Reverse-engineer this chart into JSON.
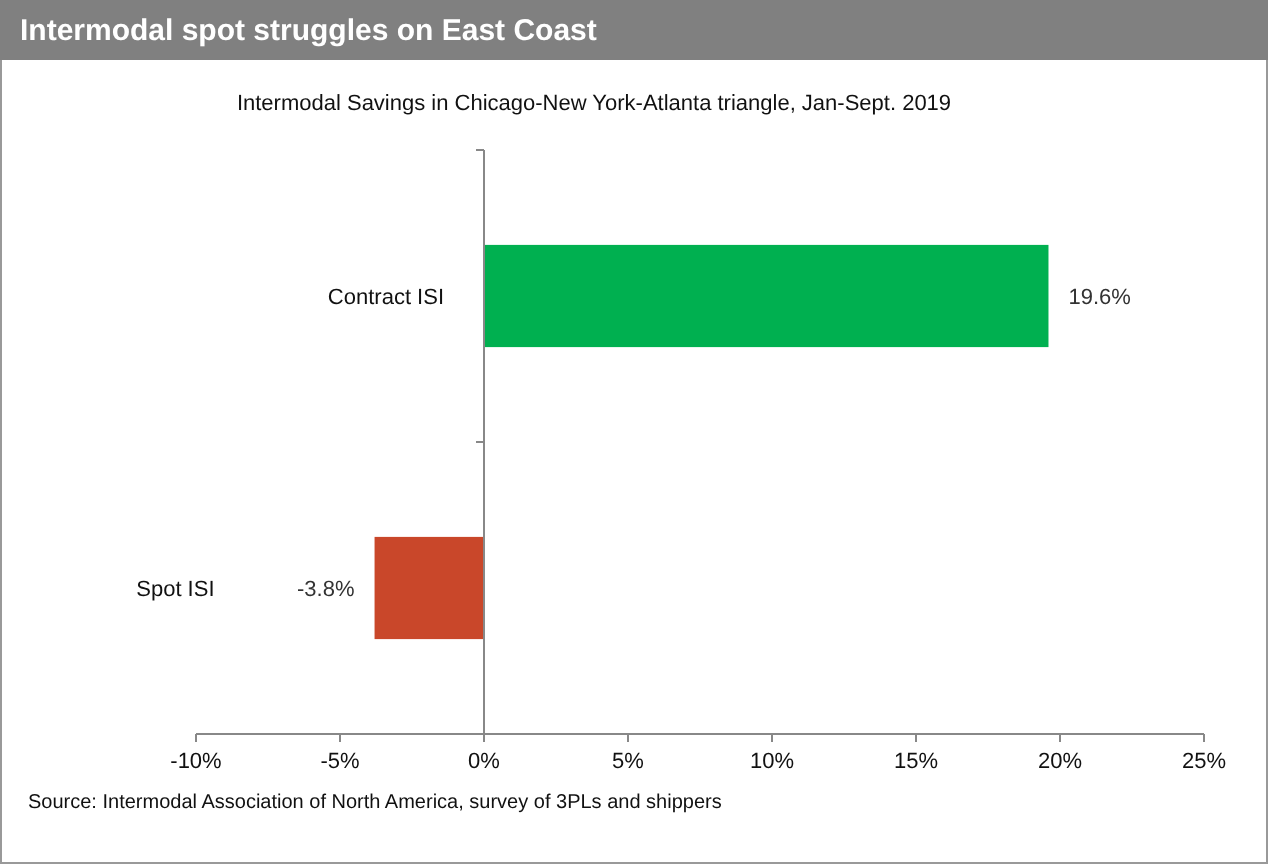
{
  "chart_data": {
    "type": "bar",
    "orientation": "horizontal",
    "title": "Intermodal spot struggles on East Coast",
    "subtitle": "Intermodal Savings in Chicago-New York-Atlanta triangle, Jan-Sept. 2019",
    "categories": [
      "Contract ISI",
      "Spot ISI"
    ],
    "values": [
      19.6,
      -3.8
    ],
    "colors": [
      "#00b050",
      "#c9472a"
    ],
    "value_labels": [
      "19.6%",
      "-3.8%"
    ],
    "xlim": [
      -10,
      25
    ],
    "xticks": [
      {
        "value": -10,
        "label": "-10%"
      },
      {
        "value": -5,
        "label": "-5%"
      },
      {
        "value": 0,
        "label": "0%"
      },
      {
        "value": 5,
        "label": "5%"
      },
      {
        "value": 10,
        "label": "10%"
      },
      {
        "value": 15,
        "label": "15%"
      },
      {
        "value": 20,
        "label": "20%"
      },
      {
        "value": 25,
        "label": "25%"
      }
    ],
    "annotations": [
      "Source: Intermodal Association of North America, survey of 3PLs and shippers"
    ]
  }
}
